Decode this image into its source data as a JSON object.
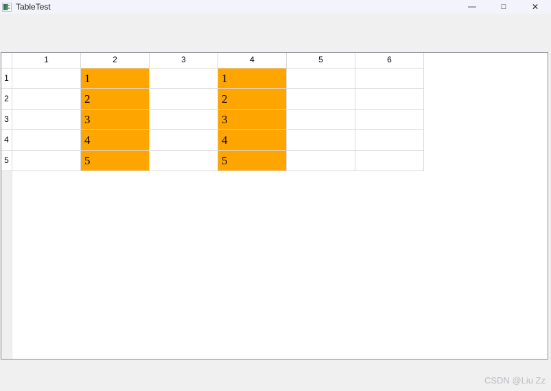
{
  "window": {
    "title": "TableTest",
    "controls": {
      "minimize": "—",
      "maximize": "□",
      "close": "✕"
    }
  },
  "table": {
    "column_headers": [
      "1",
      "2",
      "3",
      "4",
      "5",
      "6"
    ],
    "row_headers": [
      "1",
      "2",
      "3",
      "4",
      "5"
    ],
    "rows": [
      [
        "",
        "1",
        "",
        "1",
        "",
        ""
      ],
      [
        "",
        "2",
        "",
        "2",
        "",
        ""
      ],
      [
        "",
        "3",
        "",
        "3",
        "",
        ""
      ],
      [
        "",
        "4",
        "",
        "4",
        "",
        ""
      ],
      [
        "",
        "5",
        "",
        "5",
        "",
        ""
      ]
    ],
    "highlighted_columns": [
      2,
      4
    ]
  },
  "watermark": "CSDN @Liu Zz",
  "colors": {
    "highlight": "#ffa500",
    "window_bg": "#f0f0f0",
    "titlebar_bg": "#f1f4fa",
    "grid_line": "#d9d9d9",
    "table_border": "#86898f",
    "header_strip": "#efefef",
    "watermark_text": "#b9bdc2"
  }
}
